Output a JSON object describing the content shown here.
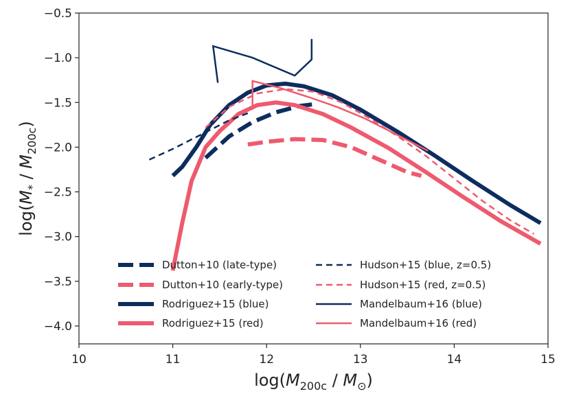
{
  "chart_data": {
    "type": "line",
    "title": "",
    "xlabel": {
      "prefix": "log(",
      "var1": "M",
      "sub1": "200c",
      "sep": " / ",
      "var2": "M",
      "sub2": "⊙",
      "suffix": ")"
    },
    "ylabel": {
      "prefix": "log(",
      "var1": "M",
      "sub1": "*",
      "sep": " / ",
      "var2": "M",
      "sub2": "200c",
      "suffix": ")"
    },
    "xlim": [
      10,
      15
    ],
    "ylim": [
      -4.2,
      -0.5
    ],
    "x_ticks": [
      10,
      11,
      12,
      13,
      14,
      15
    ],
    "x_tick_labels": [
      "10",
      "11",
      "12",
      "13",
      "14",
      "15"
    ],
    "y_ticks": [
      -0.5,
      -1.0,
      -1.5,
      -2.0,
      -2.5,
      -3.0,
      -3.5,
      -4.0
    ],
    "y_tick_labels": [
      "−0.5",
      "−1.0",
      "−1.5",
      "−2.0",
      "−2.5",
      "−3.0",
      "−3.5",
      "−4.0"
    ],
    "grid": false,
    "legend_position": "bottom",
    "colors": {
      "blue": "#0c2d5e",
      "red": "#ee5a6e"
    },
    "series": [
      {
        "name": "Dutton+10 (late-type)",
        "color": "blue",
        "style": "thick-dashed",
        "x": [
          11.35,
          11.6,
          11.85,
          12.1,
          12.35,
          12.5
        ],
        "y": [
          -2.12,
          -1.88,
          -1.72,
          -1.61,
          -1.54,
          -1.52
        ]
      },
      {
        "name": "Dutton+10 (early-type)",
        "color": "red",
        "style": "thick-dashed",
        "x": [
          11.8,
          12.0,
          12.3,
          12.6,
          12.9,
          13.2,
          13.5,
          13.65
        ],
        "y": [
          -1.97,
          -1.94,
          -1.91,
          -1.92,
          -2.0,
          -2.14,
          -2.28,
          -2.32
        ]
      },
      {
        "name": "Rodriguez+15 (blue)",
        "color": "blue",
        "style": "thick-solid",
        "x": [
          11.0,
          11.1,
          11.25,
          11.4,
          11.6,
          11.8,
          12.0,
          12.2,
          12.4,
          12.7,
          13.0,
          13.4,
          13.8,
          14.2,
          14.6,
          14.92
        ],
        "y": [
          -2.32,
          -2.22,
          -2.0,
          -1.75,
          -1.53,
          -1.39,
          -1.31,
          -1.29,
          -1.32,
          -1.42,
          -1.58,
          -1.83,
          -2.1,
          -2.38,
          -2.65,
          -2.85
        ]
      },
      {
        "name": "Rodriguez+15 (red)",
        "color": "red",
        "style": "thick-solid",
        "x": [
          11.0,
          11.1,
          11.2,
          11.35,
          11.5,
          11.7,
          11.9,
          12.1,
          12.3,
          12.6,
          12.9,
          13.3,
          13.7,
          14.1,
          14.5,
          14.92
        ],
        "y": [
          -3.38,
          -2.85,
          -2.38,
          -2.0,
          -1.82,
          -1.63,
          -1.53,
          -1.5,
          -1.53,
          -1.63,
          -1.78,
          -2.01,
          -2.28,
          -2.56,
          -2.83,
          -3.08
        ]
      },
      {
        "name": "Hudson+15 (blue, z=0.5)",
        "color": "blue",
        "style": "thin-dashed",
        "x": [
          10.75,
          11.0,
          11.3,
          11.6,
          11.8
        ],
        "y": [
          -2.14,
          -2.02,
          -1.86,
          -1.7,
          -1.62
        ]
      },
      {
        "name": "Hudson+15 (red, z=0.5)",
        "color": "red",
        "style": "thin-dashed",
        "x": [
          11.35,
          11.6,
          11.9,
          12.2,
          12.5,
          12.8,
          13.1,
          13.4,
          13.7,
          14.0,
          14.3,
          14.6,
          14.85
        ],
        "y": [
          -1.78,
          -1.55,
          -1.4,
          -1.35,
          -1.38,
          -1.5,
          -1.68,
          -1.88,
          -2.1,
          -2.35,
          -2.6,
          -2.82,
          -2.97
        ]
      },
      {
        "name": "Mandelbaum+16 (blue)",
        "color": "blue",
        "style": "thin-solid",
        "x": [
          11.48,
          11.43,
          11.85,
          12.3,
          12.4,
          12.48,
          12.48
        ],
        "y": [
          -1.28,
          -0.87,
          -1.0,
          -1.2,
          -1.1,
          -1.02,
          -0.79
        ]
      },
      {
        "name": "Mandelbaum+16 (red)",
        "color": "red",
        "style": "thin-solid",
        "x": [
          11.85,
          11.85,
          12.15,
          12.45,
          12.75,
          13.05,
          13.35,
          13.72
        ],
        "y": [
          -1.58,
          -1.26,
          -1.34,
          -1.44,
          -1.55,
          -1.68,
          -1.84,
          -2.04
        ]
      }
    ],
    "legend": [
      {
        "label": "Dutton+10 (late-type)",
        "color": "blue",
        "style": "thick-dashed"
      },
      {
        "label": "Hudson+15 (blue, z=0.5)",
        "color": "blue",
        "style": "thin-dashed"
      },
      {
        "label": "Dutton+10 (early-type)",
        "color": "red",
        "style": "thick-dashed"
      },
      {
        "label": "Hudson+15 (red, z=0.5)",
        "color": "red",
        "style": "thin-dashed"
      },
      {
        "label": "Rodriguez+15 (blue)",
        "color": "blue",
        "style": "thick-solid"
      },
      {
        "label": "Mandelbaum+16 (blue)",
        "color": "blue",
        "style": "thin-solid"
      },
      {
        "label": "Rodriguez+15 (red)",
        "color": "red",
        "style": "thick-solid"
      },
      {
        "label": "Mandelbaum+16 (red)",
        "color": "red",
        "style": "thin-solid"
      }
    ]
  }
}
